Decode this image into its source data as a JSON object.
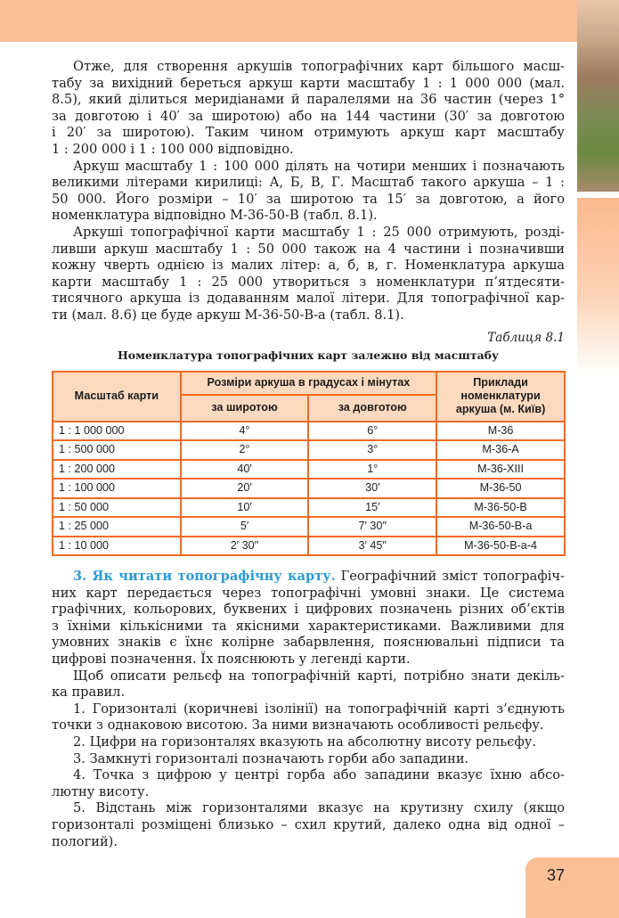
{
  "intro": [
    [
      "Отже, для створення аркушів топографічних карт більшого масш-",
      "табу за вихідний береться аркуш карти масштабу 1 : 1 000 000 (мал.",
      "8.5), який ділиться меридіанами й паралелями на 36 частин (через 1°",
      "за довготою і 40′ за широтою) або на 144 частини (30′ за довготою",
      "і 20′ за широтою). Таким чином отримують аркуш карт масштабу",
      "1 : 200 000 і 1 : 100 000 відповідно."
    ],
    [
      "Аркуш масштабу 1 : 100 000 ділять на чотири менших і позначають",
      "великими літерами кирилиці: А, Б, В, Г. Масштаб такого аркуша – 1 :",
      "50 000. Його розміри – 10′ за широтою та 15′ за довготою, а його",
      "номенклатура відповідно М-36-50-В (табл. 8.1)."
    ],
    [
      "Аркуші топографічної карти масштабу 1 : 25 000 отримують, розді-",
      "ливши аркуш масштабу 1 : 50 000 також на 4 частини і позначивши",
      "кожну чверть однією із малих літер: а, б, в, г. Номенклатура аркуша",
      "карти масштабу 1 : 25 000 утвориться з номенклатури п’ятдесяти-",
      "тисячного аркуша із додаванням малої літери. Для топографічної кар-",
      "ти (мал. 8.6) це буде аркуш М-36-50-В-а (табл. 8.1)."
    ]
  ],
  "table": {
    "caption": "Таблиця 8.1",
    "title": "Номенклатура топографічних карт залежно від масштабу",
    "headers": {
      "scale": "Масштаб карти",
      "size_group": "Розміри аркуша в градусах і мінутах",
      "lat": "за широтою",
      "lon": "за довготою",
      "example": "Приклади номенклатури аркуша (м. Київ)"
    },
    "rows": [
      [
        "1 : 1 000 000",
        "4°",
        "6°",
        "М-36"
      ],
      [
        "1 : 500 000",
        "2°",
        "3°",
        "М-36-А"
      ],
      [
        "1 : 200 000",
        "40′",
        "1°",
        "М-36-XIII"
      ],
      [
        "1 : 100 000",
        "20′",
        "30′",
        "М-36-50"
      ],
      [
        "1 : 50 000",
        "10′",
        "15′",
        "М-36-50-В"
      ],
      [
        "1 : 25 000",
        "5′",
        "7′ 30′′",
        "М-36-50-В-а"
      ],
      [
        "1 : 10 000",
        "2′ 30′′",
        "3′ 45′′",
        "М-36-50-В-а-4"
      ]
    ]
  },
  "section": {
    "heading": "3. Як читати топографічну карту.",
    "first_line_rest": "Географічний зміст топографіч-",
    "paragraphs": [
      [
        " них карт передається через топографічні умовні знаки. Це система",
        "графічних, кольорових, буквених і цифрових позначень різних об’єктів",
        "з їхніми кількісними та якісними характеристиками. Важливими для",
        "умовних знаків є їхнє колірне забарвлення, пояснювальні підписи та",
        "цифрові позначення. Їх пояснюють у легенді карти."
      ],
      [
        "Щоб описати рельєф на топографічній карті, потрібно знати декіль-",
        "ка правил."
      ],
      [
        "1. Горизонталі (коричневі ізолінії) на топографічній карті з’єднують",
        "точки з однаковою висотою. За ними визначають особливості рельєфу."
      ],
      [
        "2. Цифри на горизонталях вказують на абсолютну висоту рельєфу."
      ],
      [
        "3. Замкнуті горизонталі позначають горби або западини."
      ],
      [
        "4. Точка з цифрою у центрі горба або западини вказує їхню абсо-",
        "лютну висоту."
      ],
      [
        "5. Відстань між горизонталями вказує на крутизну схилу (якщо",
        "горизонталі розміщені близько – схил крутий, далеко одна від одної –",
        "пологий)."
      ]
    ]
  },
  "page_number": "37",
  "colors": {
    "accent": "#fbbf97",
    "table_border": "#f26b21",
    "table_header": "#fcd9bf",
    "heading_blue": "#2a9ad6"
  }
}
